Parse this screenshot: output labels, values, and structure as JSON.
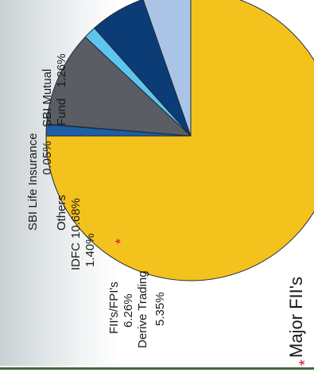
{
  "chart_data": {
    "type": "pie",
    "title": "",
    "slices": [
      {
        "label": "SBI Mutual Fund",
        "value": 1.26,
        "value_label": "1.26%",
        "color": "#1d5fa6"
      },
      {
        "label": "SBI Life Insurance",
        "value": 0.05,
        "value_label": "0.05%",
        "color": "#b8bec5"
      },
      {
        "label": "Others",
        "value": 10.68,
        "value_label": "10.68%",
        "color": "#5a5d63"
      },
      {
        "label": "IDFC",
        "value": 1.4,
        "value_label": "1.40%",
        "color": "#5ec6ee"
      },
      {
        "label": "FII's/FPI's",
        "value": 6.26,
        "value_label": "6.26%",
        "color": "#0c3c76"
      },
      {
        "label": "Derive Trading",
        "value": 5.35,
        "value_label": "5.35%",
        "color": "#a9c4e6"
      },
      {
        "label": "",
        "value": 75.0,
        "value_label": "",
        "color": "#f4c21c"
      }
    ],
    "labels": {
      "sbi_life_name": "SBI Life Insurance",
      "sbi_life_value": "0.05%",
      "sbi_mf_name_1": "SBI Mutual",
      "sbi_mf_name_2": "Fund",
      "sbi_mf_value": "1.26%",
      "others_name": "Others",
      "others_value": "10.68%",
      "idfc_name": "IDFC",
      "idfc_value": "1.40%",
      "fii_name": "FII's/FPI's",
      "fii_value": "6.26%",
      "derive_name": "Derive Trading",
      "derive_value": "5.35%"
    },
    "annotation": {
      "asterisk": "*",
      "text": "Major FII's"
    },
    "colors": {
      "asterisk": "#d6153a",
      "text": "#1a1a1a",
      "rule": "#3e6b3e"
    }
  }
}
